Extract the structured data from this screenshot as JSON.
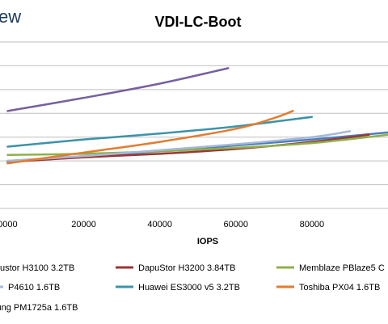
{
  "logo_text": "ew",
  "chart_data": {
    "type": "line",
    "title": "VDI-LC-Boot",
    "xlabel": "IOPS",
    "ylabel": "",
    "xlim": [
      -2000,
      100000
    ],
    "ylim": [
      0.0,
      1.4
    ],
    "x_ticks": [
      0,
      20000,
      40000,
      60000,
      80000
    ],
    "x_tick_labels": [
      "0000",
      "20000",
      "40000",
      "60000",
      "80000"
    ],
    "grid": true,
    "legend_position": "bottom",
    "series": [
      {
        "name": "ustor H3100 3.2TB",
        "color": "#4a7ebb",
        "x": [
          0,
          20000,
          40000,
          60000,
          80000,
          100000
        ],
        "y": [
          0.4,
          0.44,
          0.48,
          0.53,
          0.58,
          0.64
        ]
      },
      {
        "name": "DapuStor H3200 3.84TB",
        "color": "#9b3535",
        "x": [
          0,
          20000,
          40000,
          60000,
          80000,
          95000
        ],
        "y": [
          0.39,
          0.43,
          0.46,
          0.5,
          0.56,
          0.62
        ]
      },
      {
        "name": "Memblaze PBlaze5 C",
        "color": "#8db04a",
        "x": [
          0,
          20000,
          40000,
          60000,
          80000,
          100000
        ],
        "y": [
          0.45,
          0.46,
          0.48,
          0.51,
          0.55,
          0.62
        ]
      },
      {
        "name": "P4610 1.6TB",
        "color": "#a7b8d8",
        "x": [
          0,
          20000,
          40000,
          60000,
          80000,
          90000
        ],
        "y": [
          0.4,
          0.44,
          0.49,
          0.54,
          0.6,
          0.65
        ]
      },
      {
        "name": "Huawei ES3000 v5 3.2TB",
        "color": "#3c93a8",
        "x": [
          0,
          20000,
          40000,
          60000,
          80000
        ],
        "y": [
          0.52,
          0.58,
          0.63,
          0.69,
          0.77
        ]
      },
      {
        "name": "Toshiba PX04 1.6TB",
        "color": "#e27c2f",
        "x": [
          0,
          20000,
          40000,
          60000,
          70000,
          75000
        ],
        "y": [
          0.38,
          0.47,
          0.56,
          0.67,
          0.76,
          0.82
        ]
      },
      {
        "name": "sung PM1725a 1.6TB",
        "color": "#7660a0",
        "x": [
          0,
          20000,
          40000,
          58000
        ],
        "y": [
          0.82,
          0.93,
          1.05,
          1.18
        ]
      }
    ]
  }
}
